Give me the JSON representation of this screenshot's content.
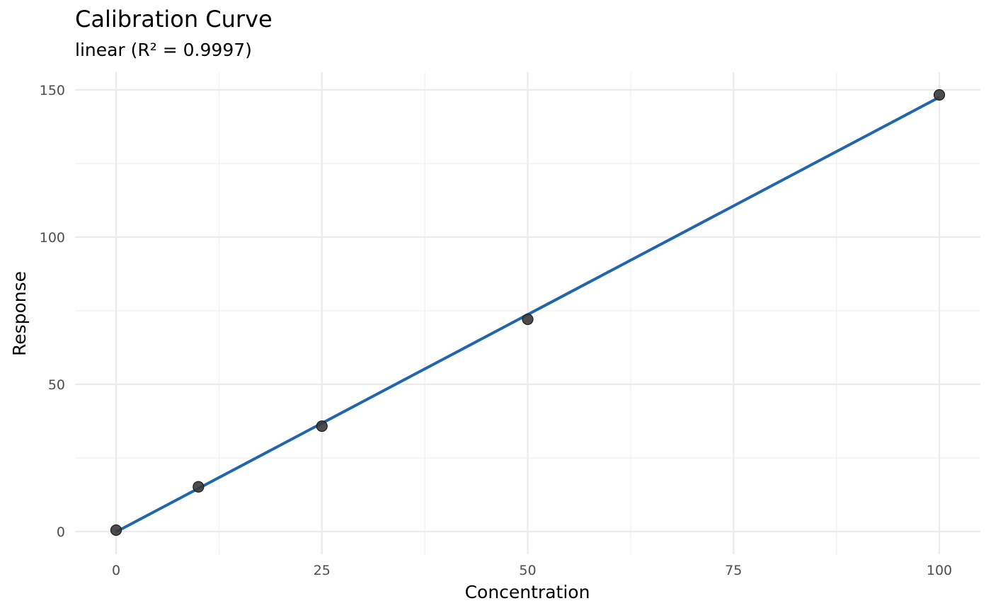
{
  "chart_data": {
    "type": "scatter",
    "title": "Calibration Curve",
    "subtitle": "linear (R² = 0.9997)",
    "xlabel": "Concentration",
    "ylabel": "Response",
    "xlim": [
      -10,
      104
    ],
    "ylim": [
      -7,
      150
    ],
    "x_ticks": [
      0,
      25,
      50,
      75,
      100
    ],
    "x_tick_labels": [
      "0",
      "25",
      "50",
      "75",
      "100"
    ],
    "y_ticks": [
      0,
      50,
      100,
      150
    ],
    "y_tick_labels": [
      "0",
      "50",
      "100",
      "150"
    ],
    "grid": true,
    "legend": "none",
    "series": [
      {
        "type": "scatter",
        "x": [
          0,
          10,
          25,
          50,
          100
        ],
        "y": [
          0.5,
          15.2,
          35.8,
          72.1,
          148.3
        ],
        "color": "#3a3a3a"
      },
      {
        "type": "line",
        "x": [
          0,
          100
        ],
        "y": [
          -0.1,
          147.5
        ],
        "color": "#2166ac"
      }
    ]
  }
}
